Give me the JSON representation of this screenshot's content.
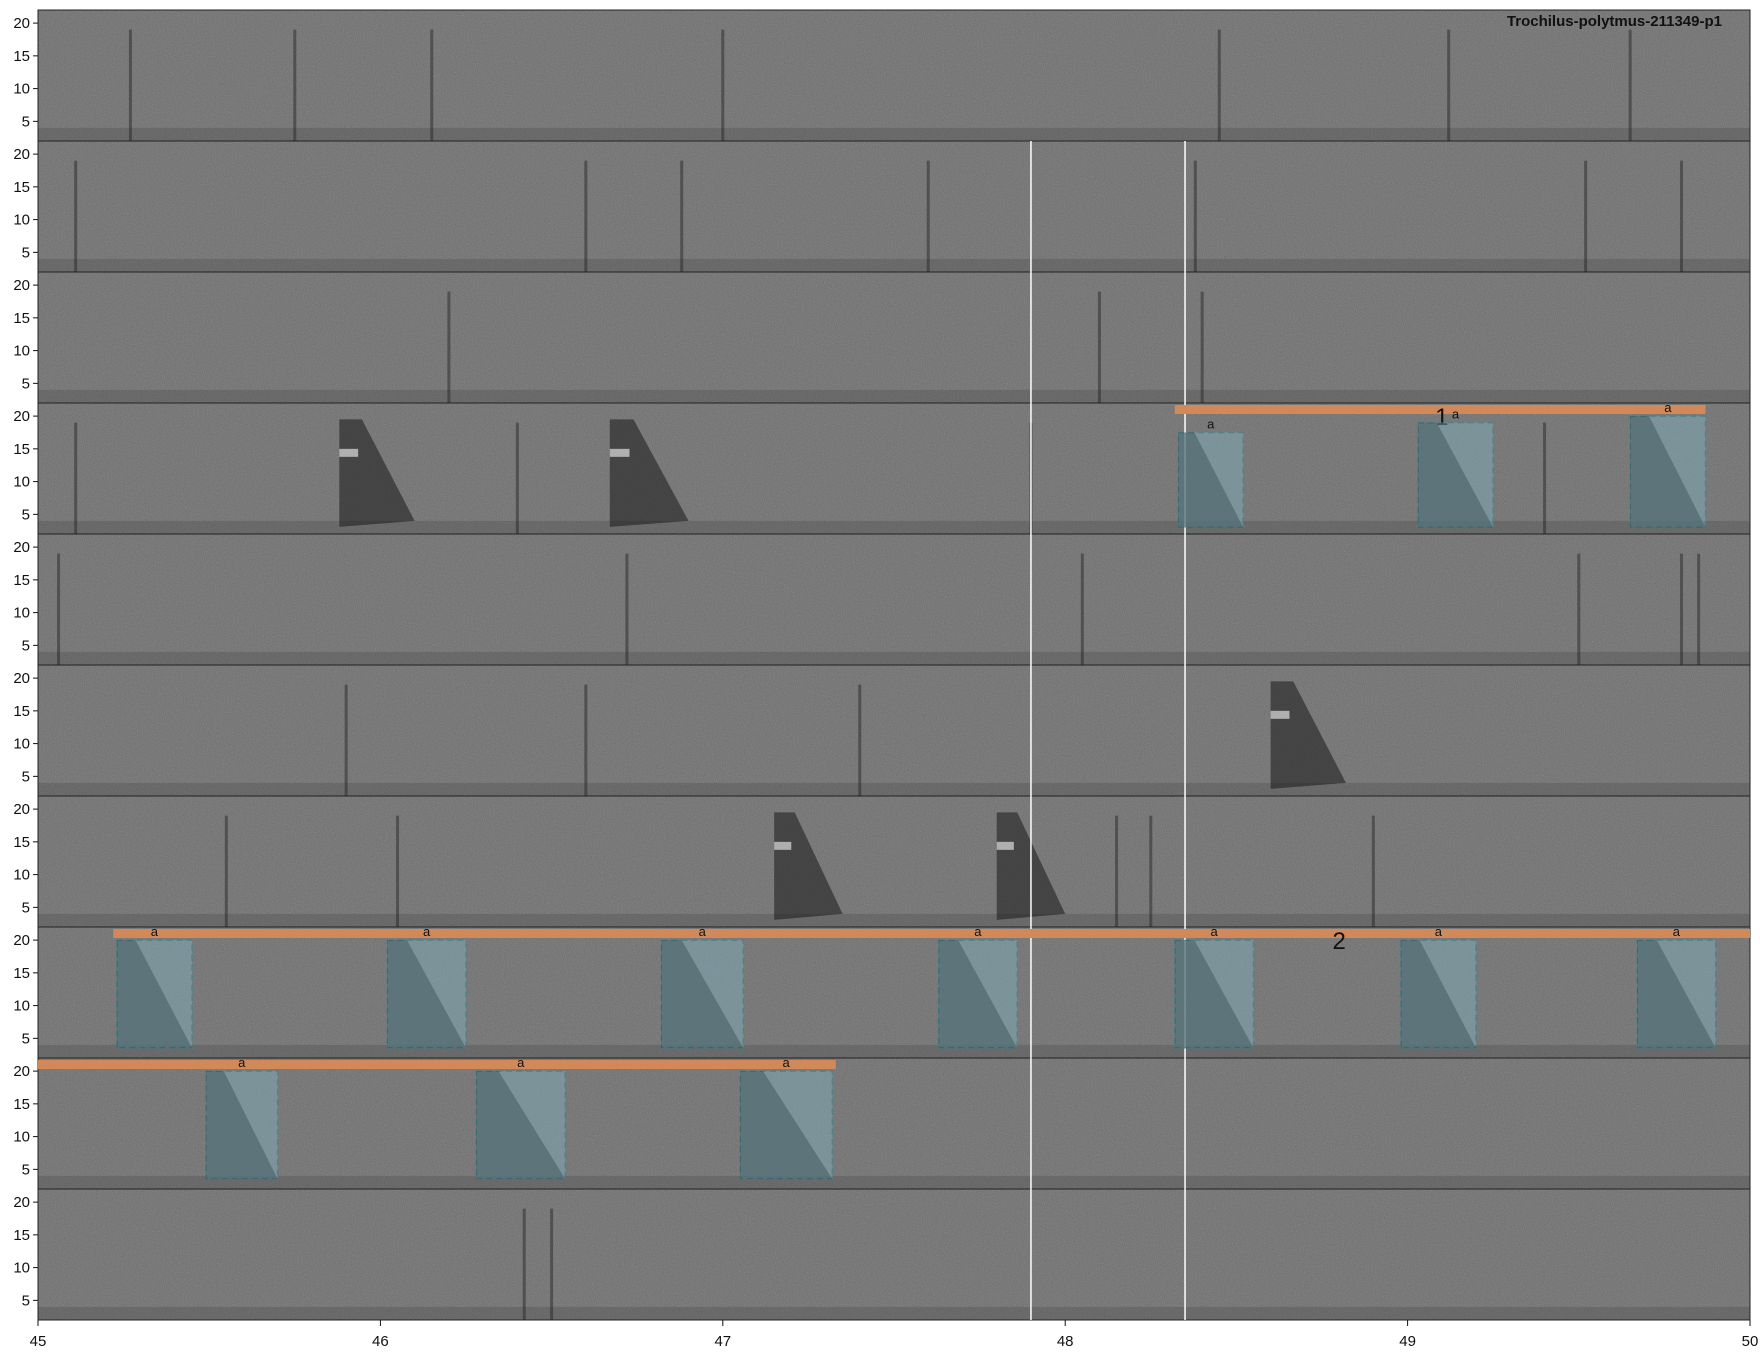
{
  "chart_data": {
    "type": "spectrogram",
    "title": "Trochilus-polytmus-211349-p1",
    "rows": 10,
    "y_ticks": [
      5,
      10,
      15,
      20
    ],
    "ylim": [
      2,
      22
    ],
    "x_ticks": [
      45,
      46,
      47,
      48,
      49,
      50
    ],
    "xlim": [
      45,
      50
    ],
    "row_duration_s": 5,
    "colors": {
      "background": "#6e6e6e",
      "phrase_bar": "#d2895a",
      "syllable_fill": "#7fb3c2",
      "syllable_border": "#1f8e9a",
      "guide_line": "#ffffff"
    },
    "guide_lines_x": [
      47.9,
      48.35
    ],
    "clicks": [
      {
        "row": 0,
        "x": [
          45.27,
          45.75,
          46.15,
          47.0,
          48.45,
          49.12,
          49.65
        ]
      },
      {
        "row": 1,
        "x": [
          45.11,
          46.6,
          46.88,
          47.6,
          48.38,
          49.52,
          49.8
        ]
      },
      {
        "row": 2,
        "x": [
          46.2,
          48.1,
          48.4
        ]
      },
      {
        "row": 3,
        "x": [
          45.11,
          46.4,
          47.9,
          49.4
        ]
      },
      {
        "row": 4,
        "x": [
          45.06,
          46.72,
          48.05,
          49.5,
          49.8,
          49.85
        ]
      },
      {
        "row": 5,
        "x": [
          45.9,
          46.6,
          47.4
        ]
      },
      {
        "row": 6,
        "x": [
          45.55,
          46.05,
          48.15,
          48.25,
          48.9
        ]
      },
      {
        "row": 9,
        "x": [
          46.42,
          46.5
        ]
      }
    ],
    "calls": [
      {
        "row": 3,
        "x0": 45.88,
        "x1": 46.1,
        "ytop": 19.5
      },
      {
        "row": 3,
        "x0": 46.67,
        "x1": 46.9,
        "ytop": 19.5
      },
      {
        "row": 5,
        "x0": 48.6,
        "x1": 48.82,
        "ytop": 19.5
      },
      {
        "row": 6,
        "x0": 47.15,
        "x1": 47.35,
        "ytop": 19.5
      },
      {
        "row": 6,
        "x0": 47.8,
        "x1": 48.0,
        "ytop": 19.5
      }
    ],
    "phrases": [
      {
        "label": "1",
        "row": 3,
        "x_start": 48.32,
        "x_end": 49.87,
        "label_x": 49.1
      },
      {
        "label": "2",
        "row": 7,
        "x_start": 45.22,
        "x_end": 50.0,
        "label_x": 48.8
      },
      {
        "label": "",
        "row": 8,
        "x_start": 45.0,
        "x_end": 47.33,
        "label_x": 46.0
      }
    ],
    "syllables": [
      {
        "row": 3,
        "label": "a",
        "x0": 48.33,
        "x1": 48.52,
        "y0": 3.0,
        "y1": 17.5
      },
      {
        "row": 3,
        "label": "a",
        "x0": 49.03,
        "x1": 49.25,
        "y0": 3.0,
        "y1": 19.0
      },
      {
        "row": 3,
        "label": "a",
        "x0": 49.65,
        "x1": 49.87,
        "y0": 3.0,
        "y1": 20.0
      },
      {
        "row": 7,
        "label": "a",
        "x0": 45.23,
        "x1": 45.45,
        "y0": 3.5,
        "y1": 20.0
      },
      {
        "row": 7,
        "label": "a",
        "x0": 46.02,
        "x1": 46.25,
        "y0": 3.5,
        "y1": 20.0
      },
      {
        "row": 7,
        "label": "a",
        "x0": 46.82,
        "x1": 47.06,
        "y0": 3.5,
        "y1": 20.0
      },
      {
        "row": 7,
        "label": "a",
        "x0": 47.63,
        "x1": 47.86,
        "y0": 3.5,
        "y1": 20.0
      },
      {
        "row": 7,
        "label": "a",
        "x0": 48.32,
        "x1": 48.55,
        "y0": 3.5,
        "y1": 20.0
      },
      {
        "row": 7,
        "label": "a",
        "x0": 48.98,
        "x1": 49.2,
        "y0": 3.5,
        "y1": 20.0
      },
      {
        "row": 7,
        "label": "a",
        "x0": 49.67,
        "x1": 49.9,
        "y0": 3.5,
        "y1": 20.0
      },
      {
        "row": 8,
        "label": "a",
        "x0": 45.49,
        "x1": 45.7,
        "y0": 3.5,
        "y1": 20.0
      },
      {
        "row": 8,
        "label": "a",
        "x0": 46.28,
        "x1": 46.54,
        "y0": 3.5,
        "y1": 20.0
      },
      {
        "row": 8,
        "label": "a",
        "x0": 47.05,
        "x1": 47.32,
        "y0": 3.5,
        "y1": 20.0
      }
    ]
  }
}
